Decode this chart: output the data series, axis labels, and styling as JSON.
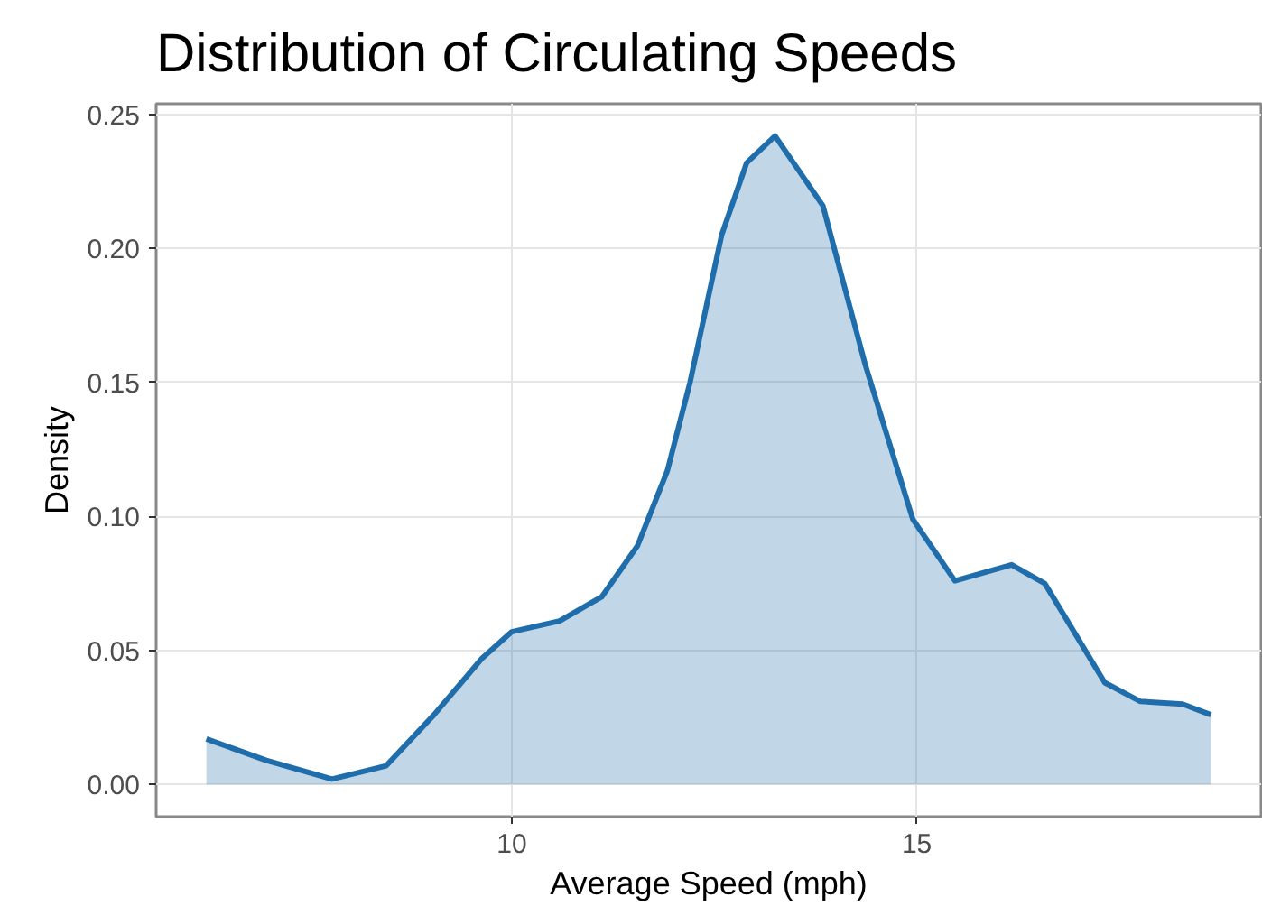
{
  "chart_data": {
    "type": "area",
    "title": "Distribution of Circulating Speeds",
    "xlabel": "Average Speed (mph)",
    "ylabel": "Density",
    "x": [
      6.23,
      6.97,
      7.78,
      8.45,
      9.04,
      9.63,
      10.0,
      10.59,
      11.11,
      11.55,
      11.92,
      12.2,
      12.59,
      12.9,
      13.25,
      13.84,
      14.36,
      14.95,
      15.47,
      16.17,
      16.58,
      17.32,
      17.76,
      18.28,
      18.63
    ],
    "series": [
      {
        "color": "#1f6eab",
        "values": [
          0.017,
          0.009,
          0.002,
          0.007,
          0.026,
          0.047,
          0.057,
          0.061,
          0.07,
          0.089,
          0.117,
          0.15,
          0.205,
          0.232,
          0.242,
          0.216,
          0.157,
          0.099,
          0.076,
          0.082,
          0.075,
          0.038,
          0.031,
          0.03,
          0.026
        ]
      }
    ],
    "xlim": [
      5.61,
      19.25
    ],
    "ylim": [
      -0.012,
      0.254
    ],
    "xticks": [
      10,
      15
    ],
    "yticks": [
      {
        "value": 0,
        "label": "0.00"
      },
      {
        "value": 0.05,
        "label": "0.05"
      },
      {
        "value": 0.1,
        "label": "0.10"
      },
      {
        "value": 0.15,
        "label": "0.15"
      },
      {
        "value": 0.2,
        "label": "0.20"
      },
      {
        "value": 0.25,
        "label": "0.25"
      }
    ],
    "grid": true
  }
}
